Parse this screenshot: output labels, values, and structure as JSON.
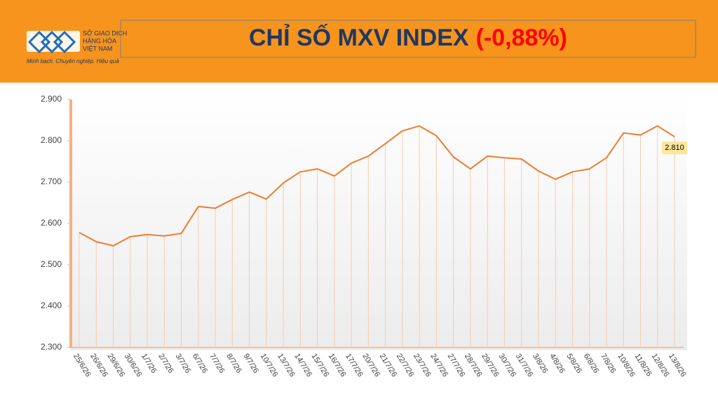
{
  "header": {
    "logo_name": [
      "SỞ GIAO DỊCH",
      "HÀNG HÓA",
      "VIỆT NAM"
    ],
    "slogan": "Minh bạch. Chuyên nghiệp. Hiệu quả",
    "title": "CHỈ SỐ MXV INDEX",
    "change": "(-0,88%)"
  },
  "chart_data": {
    "type": "line",
    "color": "#ed7d31",
    "categories": [
      "25/6/26",
      "26/6/26",
      "29/6/26",
      "30/6/26",
      "1/7/26",
      "2/7/26",
      "3/7/26",
      "6/7/26",
      "7/7/26",
      "8/7/26",
      "9/7/26",
      "10/7/26",
      "13/7/26",
      "14/7/26",
      "15/7/26",
      "16/7/26",
      "17/7/26",
      "20/7/26",
      "21/7/26",
      "22/7/26",
      "23/7/26",
      "24/7/26",
      "27/7/26",
      "28/7/26",
      "29/7/26",
      "30/7/26",
      "31/7/26",
      "3/8/26",
      "4/8/26",
      "5/8/26",
      "6/8/26",
      "7/8/26",
      "10/8/26",
      "11/8/26",
      "12/8/26",
      "13/8/26"
    ],
    "values": [
      2578,
      2556,
      2546,
      2568,
      2573,
      2570,
      2576,
      2641,
      2637,
      2658,
      2676,
      2659,
      2698,
      2725,
      2732,
      2715,
      2746,
      2763,
      2793,
      2824,
      2836,
      2812,
      2761,
      2732,
      2763,
      2759,
      2756,
      2727,
      2707,
      2725,
      2732,
      2759,
      2819,
      2814,
      2836,
      2810
    ],
    "value_labels": [
      null,
      null,
      null,
      null,
      null,
      null,
      null,
      null,
      null,
      null,
      null,
      null,
      null,
      null,
      null,
      null,
      null,
      null,
      null,
      null,
      null,
      null,
      null,
      null,
      null,
      null,
      null,
      null,
      null,
      null,
      null,
      null,
      null,
      null,
      null,
      "2.810"
    ],
    "ylim": [
      2300,
      2900
    ],
    "yticks": [
      {
        "value": 2300,
        "label": "2.300"
      },
      {
        "value": 2400,
        "label": "2.400"
      },
      {
        "value": 2500,
        "label": "2.500"
      },
      {
        "value": 2600,
        "label": "2.600"
      },
      {
        "value": 2700,
        "label": "2.700"
      },
      {
        "value": 2800,
        "label": "2.800"
      },
      {
        "value": 2900,
        "label": "2.900"
      }
    ]
  }
}
